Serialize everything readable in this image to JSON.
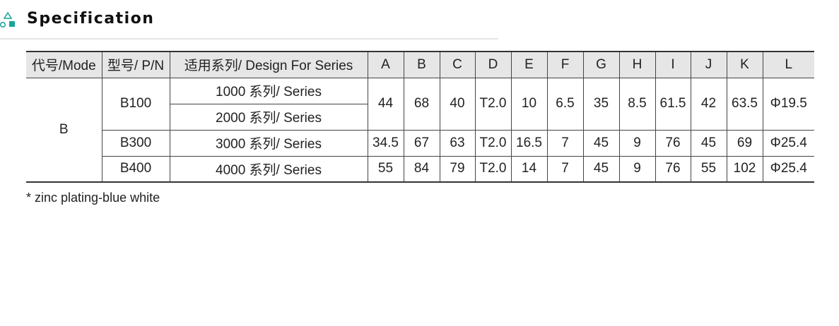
{
  "header": {
    "title": "Specification",
    "icon": "shapes-icon",
    "accent": "#1aa39a"
  },
  "table": {
    "columns": [
      "代号/Mode",
      "型号/ P/N",
      "适用系列/ Design For Series",
      "A",
      "B",
      "C",
      "D",
      "E",
      "F",
      "G",
      "H",
      "I",
      "J",
      "K",
      "L"
    ],
    "mode": "B",
    "rows": [
      {
        "pn": "B100",
        "series": [
          "1000 系列/ Series",
          "2000 系列/ Series"
        ],
        "values": [
          "44",
          "68",
          "40",
          "T2.0",
          "10",
          "6.5",
          "35",
          "8.5",
          "61.5",
          "42",
          "63.5",
          "Φ19.5"
        ]
      },
      {
        "pn": "B300",
        "series": [
          "3000 系列/ Series"
        ],
        "values": [
          "34.5",
          "67",
          "63",
          "T2.0",
          "16.5",
          "7",
          "45",
          "9",
          "76",
          "45",
          "69",
          "Φ25.4"
        ]
      },
      {
        "pn": "B400",
        "series": [
          "4000 系列/ Series"
        ],
        "values": [
          "55",
          "84",
          "79",
          "T2.0",
          "14",
          "7",
          "45",
          "9",
          "76",
          "55",
          "102",
          "Φ25.4"
        ]
      }
    ]
  },
  "note": "* zinc plating-blue white"
}
